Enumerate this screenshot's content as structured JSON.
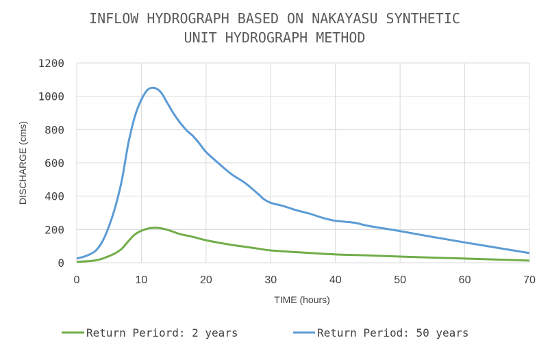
{
  "chart_data": {
    "type": "line",
    "title_lines": [
      "INFLOW HYDROGRAPH BASED ON NAKAYASU SYNTHETIC",
      "UNIT HYDROGRAPH METHOD"
    ],
    "xlabel": "TIME (hours)",
    "ylabel": "DISCHARGE (cms)",
    "xlim": [
      0,
      70
    ],
    "ylim": [
      0,
      1200
    ],
    "xticks": [
      0,
      10,
      20,
      30,
      40,
      50,
      60,
      70
    ],
    "yticks": [
      0,
      200,
      400,
      600,
      800,
      1000,
      1200
    ],
    "grid": true,
    "legend_position": "bottom",
    "series": [
      {
        "name": "Return Periord: 2 years",
        "color": "#70ad47",
        "x": [
          0,
          2,
          3,
          4,
          5,
          6,
          7,
          8,
          9,
          10,
          11,
          12,
          13,
          14,
          15,
          16,
          18,
          20,
          22,
          24,
          26,
          28,
          30,
          35,
          40,
          45,
          50,
          55,
          60,
          65,
          70
        ],
        "y": [
          5,
          10,
          15,
          25,
          40,
          58,
          85,
          130,
          170,
          192,
          205,
          210,
          207,
          198,
          185,
          172,
          155,
          135,
          120,
          107,
          96,
          85,
          74,
          61,
          50,
          44,
          37,
          31,
          25,
          19,
          13
        ]
      },
      {
        "name": "Return Period: 50 years",
        "color": "#5b9bd5",
        "x": [
          0,
          1,
          2,
          3,
          4,
          5,
          6,
          7,
          8,
          9,
          10,
          11,
          12,
          13,
          14,
          15,
          16,
          17,
          18,
          19,
          20,
          22,
          24,
          26,
          28,
          29,
          30,
          32,
          34,
          36,
          38,
          40,
          43,
          45,
          50,
          55,
          60,
          65,
          70
        ],
        "y": [
          25,
          35,
          50,
          75,
          130,
          220,
          340,
          500,
          720,
          880,
          980,
          1040,
          1050,
          1025,
          960,
          895,
          840,
          795,
          760,
          715,
          665,
          595,
          530,
          480,
          415,
          380,
          360,
          340,
          315,
          295,
          270,
          252,
          240,
          222,
          190,
          155,
          122,
          90,
          58
        ]
      }
    ]
  }
}
